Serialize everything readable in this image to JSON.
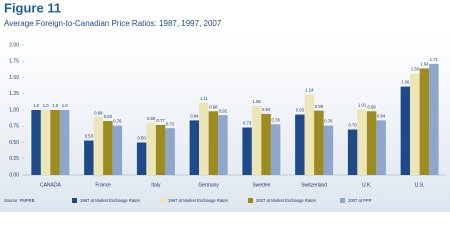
{
  "chart_data": {
    "type": "bar",
    "title": "Figure 11",
    "subtitle": "Average Foreign-to-Canadian Price Ratios: 1987, 1997, 2007",
    "source": "Source: PMPRB",
    "categories": [
      "CANADA",
      "France",
      "Italy",
      "Germany",
      "Sweden",
      "Switzerland",
      "U.K.",
      "U.S."
    ],
    "series": [
      {
        "name": "1987 at Market Exchange Rates",
        "color": "#1f4a8a",
        "values": [
          1.0,
          0.53,
          0.5,
          0.84,
          0.73,
          0.93,
          0.7,
          1.36
        ],
        "value_labels": [
          "1.0",
          "0.53",
          "0.50",
          "0.84",
          "0.73",
          "0.93",
          "0.70",
          "1.36"
        ]
      },
      {
        "name": "1997 at Market Exchange Rates",
        "color": "#ebe5b8",
        "values": [
          1.0,
          0.89,
          0.8,
          1.11,
          1.06,
          1.24,
          1.01,
          1.56
        ],
        "value_labels": [
          "1.0",
          "0.89",
          "0.80",
          "1.11",
          "1.06",
          "1.24",
          "1.01",
          "1.56"
        ]
      },
      {
        "name": "2007 at Market Exchange Rates",
        "color": "#9c8b1f",
        "values": [
          1.0,
          0.83,
          0.77,
          0.98,
          0.94,
          0.99,
          0.98,
          1.64
        ],
        "value_labels": [
          "1.0",
          "0.83",
          "0.77",
          "0.98",
          "0.94",
          "0.99",
          "0.98",
          "1.64"
        ]
      },
      {
        "name": "2007 at PPP",
        "color": "#8ea5cc",
        "values": [
          1.0,
          0.76,
          0.72,
          0.92,
          0.78,
          0.76,
          0.84,
          1.71
        ],
        "value_labels": [
          "1.0",
          "0.76",
          "0.72",
          "0.92",
          "0.78",
          "0.76",
          "0.84",
          "1.71"
        ]
      }
    ],
    "ylim": [
      0,
      2
    ],
    "yticks": [
      {
        "value": 0,
        "label": "0.00"
      },
      {
        "value": 0.25,
        "label": "0.25"
      },
      {
        "value": 0.5,
        "label": "0.50"
      },
      {
        "value": 0.75,
        "label": "0.75"
      },
      {
        "value": 1,
        "label": "1.00"
      },
      {
        "value": 1.25,
        "label": "1.25"
      },
      {
        "value": 1.5,
        "label": "1.50"
      },
      {
        "value": 1.75,
        "label": "1.75"
      },
      {
        "value": 2,
        "label": "2.00"
      }
    ],
    "grid": false
  }
}
